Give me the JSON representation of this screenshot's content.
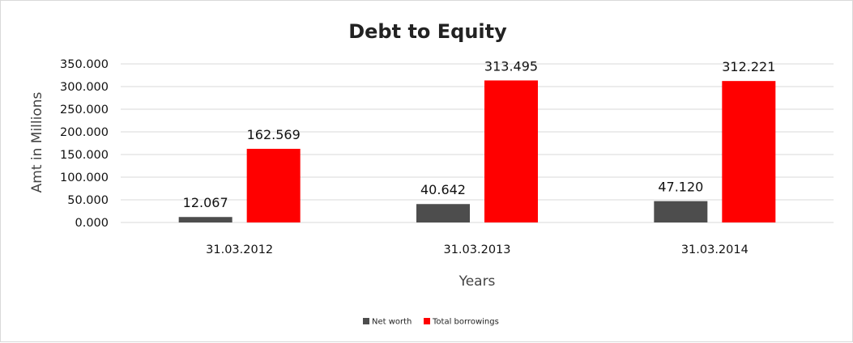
{
  "chart_data": {
    "type": "bar",
    "title": "Debt to Equity",
    "xlabel": "Years",
    "ylabel": "Amt in Millions",
    "categories": [
      "31.03.2012",
      "31.03.2013",
      "31.03.2014"
    ],
    "series": [
      {
        "name": "Net worth",
        "values": [
          12.067,
          40.642,
          47.12
        ],
        "labels": [
          "12.067",
          "40.642",
          "47.120"
        ],
        "color": "#4d4d4d"
      },
      {
        "name": "Total borrowings",
        "values": [
          162.569,
          313.495,
          312.221
        ],
        "labels": [
          "162.569",
          "313.495",
          "312.221"
        ],
        "color": "#ff0000"
      }
    ],
    "ylim": [
      0,
      350
    ],
    "yticks": [
      0,
      50,
      100,
      150,
      200,
      250,
      300,
      350
    ],
    "ytick_labels": [
      "0.000",
      "50.000",
      "100.000",
      "150.000",
      "200.000",
      "250.000",
      "300.000",
      "350.000"
    ],
    "grid": true,
    "legend_position": "bottom",
    "gridline_color": "#d9d9d9"
  }
}
